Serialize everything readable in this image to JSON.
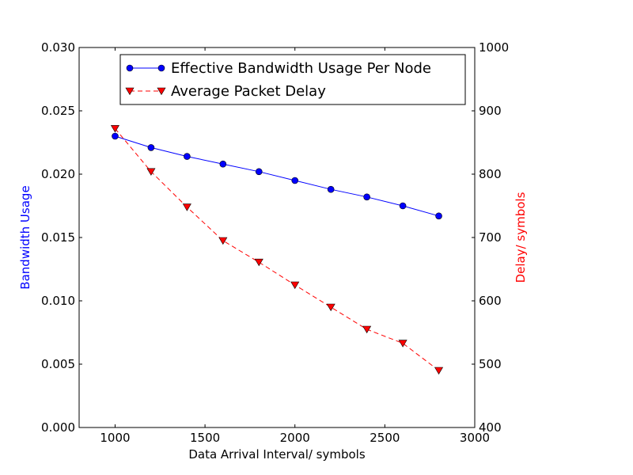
{
  "chart_data": {
    "type": "line",
    "title": "",
    "xlabel": "Data Arrival Interval/ symbols",
    "xlim": [
      800,
      3000
    ],
    "xticks": [
      1000,
      1500,
      2000,
      2500,
      3000
    ],
    "xtick_labels": [
      "1000",
      "1500",
      "2000",
      "2500",
      "3000"
    ],
    "grid": false,
    "legend_position": "top-right",
    "axes": {
      "left": {
        "label": "Bandwidth Usage",
        "color": "#0000ff",
        "ylim": [
          0.0,
          0.03
        ],
        "ticks": [
          0.0,
          0.005,
          0.01,
          0.015,
          0.02,
          0.025,
          0.03
        ],
        "tick_labels": [
          "0.000",
          "0.005",
          "0.010",
          "0.015",
          "0.020",
          "0.025",
          "0.030"
        ]
      },
      "right": {
        "label": "Delay/ symbols",
        "color": "#ff0000",
        "ylim": [
          400,
          1000
        ],
        "ticks": [
          400,
          500,
          600,
          700,
          800,
          900,
          1000
        ],
        "tick_labels": [
          "400",
          "500",
          "600",
          "700",
          "800",
          "900",
          "1000"
        ]
      }
    },
    "x": [
      1000,
      1200,
      1400,
      1600,
      1800,
      2000,
      2200,
      2400,
      2600,
      2800
    ],
    "series": [
      {
        "name": "Effective Bandwidth Usage Per Node",
        "axis": "left",
        "color": "#0000ff",
        "line_style": "solid",
        "marker": "circle",
        "values": [
          0.023,
          0.0221,
          0.0214,
          0.0208,
          0.0202,
          0.0195,
          0.0188,
          0.0182,
          0.0175,
          0.0167
        ]
      },
      {
        "name": "Average Packet Delay",
        "axis": "right",
        "color": "#ff0000",
        "line_style": "dashed",
        "marker": "triangle-down",
        "values": [
          872,
          804,
          748,
          695,
          661,
          625,
          590,
          555,
          533,
          490
        ]
      }
    ]
  }
}
